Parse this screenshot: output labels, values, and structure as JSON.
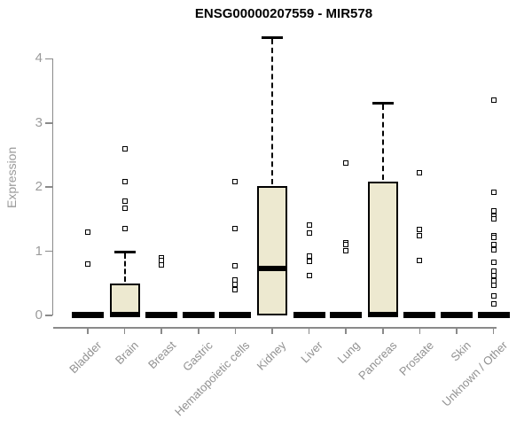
{
  "chart_data": {
    "type": "boxplot",
    "title": "ENSG00000207559 - MIR578",
    "ylabel": "Expression",
    "xlabel": "",
    "yticks": [
      0,
      1,
      2,
      3,
      4
    ],
    "ylim": [
      0,
      4.45
    ],
    "grid": false,
    "legend": "none",
    "box_fill_color": "#ede9d0",
    "box_border_color": "#000000",
    "axis_color": "#8a8a8a",
    "label_color": "#919191",
    "categories": [
      "Bladder",
      "Brain",
      "Breast",
      "Gastric",
      "Hematopoietic cells",
      "Kidney",
      "Liver",
      "Lung",
      "Pancreas",
      "Prostate",
      "Skin",
      "Unknown / Other"
    ],
    "boxes": [
      {
        "category": "Bladder",
        "q1": 0,
        "median": 0,
        "q3": 0,
        "whisker_low": 0,
        "whisker_high": 0,
        "outliers": [
          1.3,
          0.8
        ]
      },
      {
        "category": "Brain",
        "q1": 0,
        "median": 0,
        "q3": 0.5,
        "whisker_low": 0,
        "whisker_high": 1.0,
        "outliers": [
          2.6,
          2.08,
          1.78,
          1.67,
          1.36
        ]
      },
      {
        "category": "Breast",
        "q1": 0,
        "median": 0,
        "q3": 0,
        "whisker_low": 0,
        "whisker_high": 0,
        "outliers": [
          0.9,
          0.85,
          0.79
        ]
      },
      {
        "category": "Gastric",
        "q1": 0,
        "median": 0,
        "q3": 0,
        "whisker_low": 0,
        "whisker_high": 0,
        "outliers": []
      },
      {
        "category": "Hematopoietic cells",
        "q1": 0,
        "median": 0,
        "q3": 0,
        "whisker_low": 0,
        "whisker_high": 0,
        "outliers": [
          2.09,
          1.36,
          0.78,
          0.55,
          0.48,
          0.4
        ]
      },
      {
        "category": "Kidney",
        "q1": 0,
        "median": 0.72,
        "q3": 2.02,
        "whisker_low": 0,
        "whisker_high": 4.34,
        "outliers": []
      },
      {
        "category": "Liver",
        "q1": 0,
        "median": 0,
        "q3": 0,
        "whisker_low": 0,
        "whisker_high": 0,
        "outliers": [
          1.41,
          1.29,
          0.93,
          0.84,
          0.62
        ]
      },
      {
        "category": "Lung",
        "q1": 0,
        "median": 0,
        "q3": 0,
        "whisker_low": 0,
        "whisker_high": 0,
        "outliers": [
          2.37,
          1.13,
          1.1,
          1.01
        ]
      },
      {
        "category": "Pancreas",
        "q1": 0,
        "median": 0,
        "q3": 2.09,
        "whisker_low": 0,
        "whisker_high": 3.32,
        "outliers": []
      },
      {
        "category": "Prostate",
        "q1": 0,
        "median": 0,
        "q3": 0,
        "whisker_low": 0,
        "whisker_high": 0,
        "outliers": [
          2.23,
          1.34,
          1.25,
          0.86
        ]
      },
      {
        "category": "Skin",
        "q1": 0,
        "median": 0,
        "q3": 0,
        "whisker_low": 0,
        "whisker_high": 0,
        "outliers": []
      },
      {
        "category": "Unknown / Other",
        "q1": 0,
        "median": 0,
        "q3": 0,
        "whisker_low": 0,
        "whisker_high": 0,
        "outliers": [
          3.36,
          1.92,
          1.63,
          1.55,
          1.5,
          1.24,
          1.21,
          1.1,
          1.02,
          0.83,
          0.69,
          0.62,
          0.54,
          0.47,
          0.3,
          0.18
        ]
      }
    ]
  }
}
